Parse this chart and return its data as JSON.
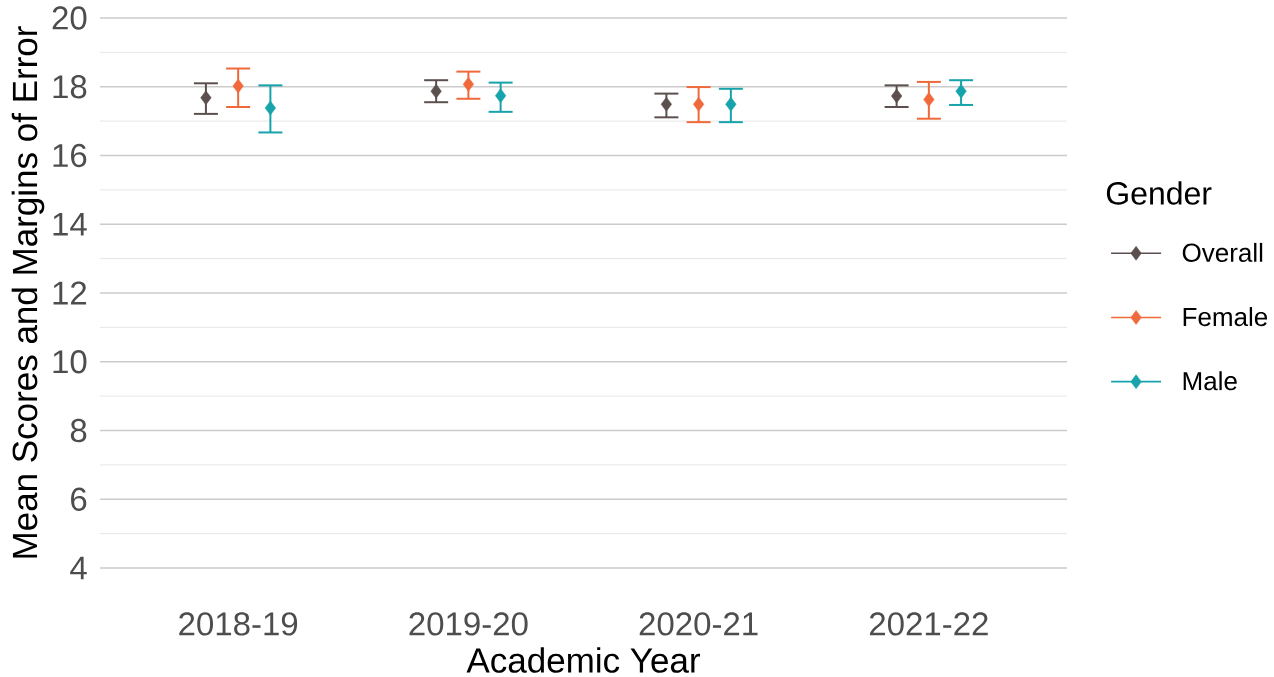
{
  "chart_data": {
    "type": "scatter",
    "xlabel": "Academic Year",
    "ylabel": "Mean Scores and Margins of Error",
    "legend_title": "Gender",
    "categories": [
      "2018-19",
      "2019-20",
      "2020-21",
      "2021-22"
    ],
    "series": [
      {
        "name": "Overall",
        "color": "#5c504e",
        "values": [
          17.68,
          17.87,
          17.49,
          17.73
        ],
        "errors": [
          [
            17.21,
            18.1
          ],
          [
            17.55,
            18.19
          ],
          [
            17.11,
            17.8
          ],
          [
            17.41,
            18.04
          ]
        ]
      },
      {
        "name": "Female",
        "color": "#f0693a",
        "values": [
          18.02,
          18.07,
          17.49,
          17.63
        ],
        "errors": [
          [
            17.41,
            18.53
          ],
          [
            17.65,
            18.44
          ],
          [
            16.97,
            17.99
          ],
          [
            17.07,
            18.14
          ]
        ]
      },
      {
        "name": "Male",
        "color": "#17a3ab",
        "values": [
          17.38,
          17.74,
          17.49,
          17.87
        ],
        "errors": [
          [
            16.67,
            18.04
          ],
          [
            17.27,
            18.12
          ],
          [
            16.97,
            17.94
          ],
          [
            17.47,
            18.19
          ]
        ]
      }
    ],
    "ylim": [
      4,
      20
    ],
    "yticks": [
      4,
      6,
      8,
      10,
      12,
      14,
      16,
      18,
      20
    ],
    "grid": "y",
    "legend": "right",
    "marker": "diamond"
  }
}
